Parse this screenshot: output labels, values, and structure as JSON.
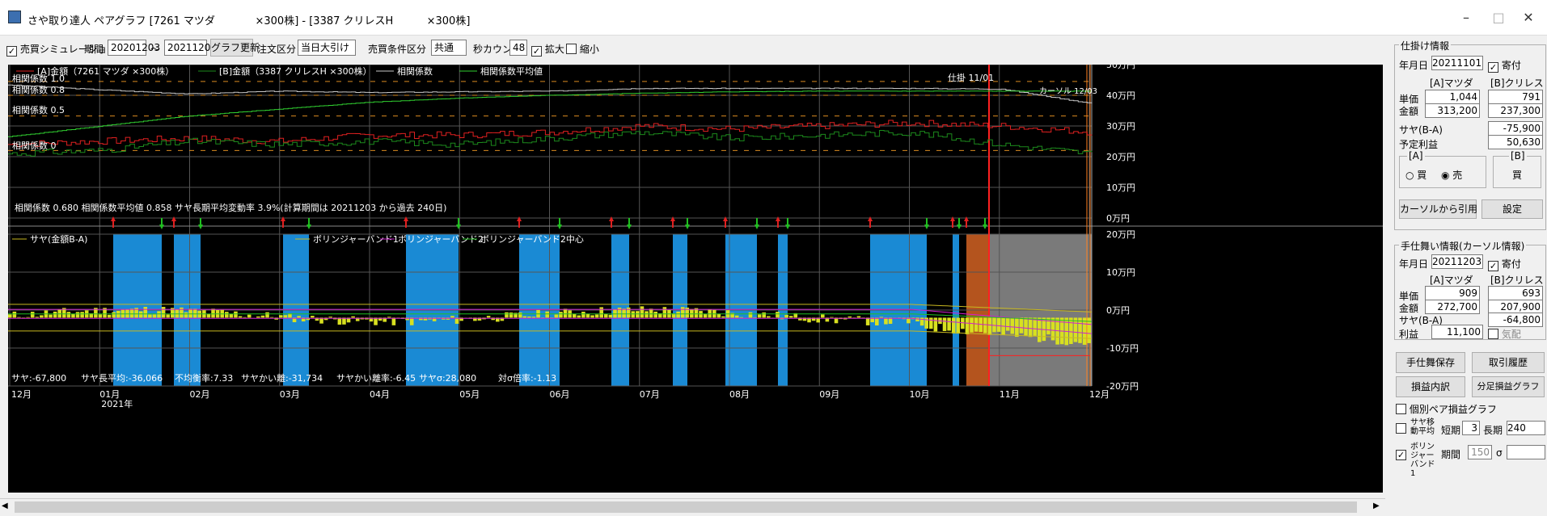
{
  "window": {
    "title": "さや取り達人 ペアグラフ [7261 マツダ            ×300株] - [3387 クリレスH          ×300株]",
    "minimize": "–",
    "maximize": "□",
    "close": "✕"
  },
  "toolbar": {
    "sim_label": "売買シミュレーション",
    "sim_checked": "✓",
    "period_label": "期間",
    "start_date": "20201203",
    "tilde": "〜",
    "end_date": "20211203",
    "update_btn": "グラフ更新",
    "order_label": "注文区分",
    "order_value": "当日大引け",
    "cond_label": "売買条件区分",
    "cond_value": "共通",
    "sec_label": "秒カウント",
    "sec_value": "48",
    "zoom_label": "拡大",
    "zoom_checked": "✓",
    "shrink_label": "縮小"
  },
  "chart_upper": {
    "legend": [
      "[A]金額（7261 マツダ        ×300株）",
      "[B]金額（3387 クリレスH       ×300株）",
      "相関係数",
      "相関係数平均値"
    ],
    "corr_labels": [
      "相関係数 1.0",
      "相関係数 0.8",
      "相関係数 0.5",
      "相関係数 0"
    ],
    "y_labels": [
      "50万円",
      "40万円",
      "30万円",
      "20万円",
      "10万円",
      "0万円"
    ],
    "mark_open": "仕掛 11/01",
    "mark_cursor": "カーソル 12/03",
    "stats": "相関係数 0.680 相関係数平均値 0.858 サヤ長期平均変動率 3.9%(計算期間は 20211203 から過去 240日)"
  },
  "chart_lower": {
    "legend": [
      "サヤ(金額B-A)",
      "ボリンジャーバンド1",
      "ボリンジャーバンド2",
      "ボリンジャーバンド2中心"
    ],
    "y_labels": [
      "20万円",
      "10万円",
      "0万円",
      "-10万円",
      "-20万円"
    ],
    "stats": [
      "サヤ:-67,800",
      "サヤ長平均:-36,066",
      "不均衡率:7.33",
      "サヤかい離:-31,734",
      "サヤかい離率:-6.45",
      "サヤσ:28,080",
      "対σ倍率:-1.13"
    ]
  },
  "x_axis": {
    "labels": [
      "12月",
      "01月",
      "02月",
      "03月",
      "04月",
      "05月",
      "06月",
      "07月",
      "08月",
      "09月",
      "10月",
      "11月",
      "12月"
    ],
    "year": "2021年"
  },
  "chart_data": {
    "type": "line",
    "x": [
      "12月",
      "01月",
      "02月",
      "03月",
      "04月",
      "05月",
      "06月",
      "07月",
      "08月",
      "09月",
      "10月",
      "11月",
      "12月"
    ],
    "series": [
      {
        "name": "[A]金額（7261 マツダ ×300株）",
        "values": [
          24,
          25,
          26,
          25,
          27,
          27,
          28,
          30,
          29,
          30,
          31,
          30,
          28
        ]
      },
      {
        "name": "[B]金額（3387 クリレスH ×300株）",
        "values": [
          21,
          22,
          25,
          24,
          25,
          24,
          26,
          28,
          26,
          27,
          28,
          24,
          21
        ]
      },
      {
        "name": "相関係数",
        "values": [
          0.95,
          0.88,
          0.82,
          0.86,
          0.84,
          0.85,
          0.86,
          0.9,
          0.9,
          0.9,
          0.9,
          0.89,
          0.68
        ]
      },
      {
        "name": "相関係数平均値",
        "values": [
          0.2,
          0.35,
          0.5,
          0.6,
          0.7,
          0.76,
          0.8,
          0.83,
          0.85,
          0.86,
          0.86,
          0.86,
          0.86
        ]
      }
    ],
    "ylim": [
      0,
      50
    ],
    "ylabel": "万円"
  },
  "panel": {
    "open_info": {
      "title": "仕掛け情報",
      "date_label": "年月日",
      "date": "20211101",
      "yori_label": "寄付",
      "yori_checked": "✓",
      "col_a": "[A]マツダ",
      "col_b": "[B]クリレス",
      "price_label": "単価",
      "price_a": "1,044",
      "price_b": "791",
      "amount_label": "金額",
      "amount_a": "313,200",
      "amount_b": "237,300",
      "saya_label": "サヤ(B-A)",
      "saya": "-75,900",
      "profit_label": "予定利益",
      "profit": "50,630",
      "a_label": "[A]",
      "b_label": "[B]",
      "buy": "買",
      "sell": "売",
      "b_side": "買",
      "from_cursor": "カーソルから引用",
      "setting": "設定"
    },
    "close_info": {
      "title": "手仕舞い情報(カーソル情報)",
      "date_label": "年月日",
      "date": "20211203",
      "yori_label": "寄付",
      "yori_checked": "✓",
      "col_a": "[A]マツダ",
      "col_b": "[B]クリレス",
      "price_label": "単価",
      "price_a": "909",
      "price_b": "693",
      "amount_label": "金額",
      "amount_a": "272,700",
      "amount_b": "207,900",
      "saya_label": "サヤ(B-A)",
      "saya": "-64,800",
      "profit_label": "利益",
      "profit": "11,100",
      "kihai_label": "気配"
    },
    "buttons": {
      "save": "手仕舞保存",
      "history": "取引履歴",
      "breakdown": "損益内訳",
      "fixed_graph": "分足損益グラフ"
    },
    "options": {
      "pair_graph": "個別ペア損益グラフ",
      "ma_label": "サヤ移動平均",
      "short_label": "短期",
      "short_value": "3",
      "long_label": "長期",
      "long_value": "240",
      "boll_label": "ボリンジャーバンド1",
      "boll_checked": "✓",
      "period_label": "期間",
      "period_value": "150",
      "sigma_label": "σ"
    }
  },
  "colors": {
    "chart_bg": "#000000",
    "series_a": "#e02020",
    "series_b": "#1c8a1c",
    "corr": "#c8c8c8",
    "corr_avg": "#30d030",
    "saya_bar": "#d8e020",
    "band_blue": "#1a8ad4",
    "band_orange": "#b4541e",
    "band_gray": "#7a7a7a"
  }
}
